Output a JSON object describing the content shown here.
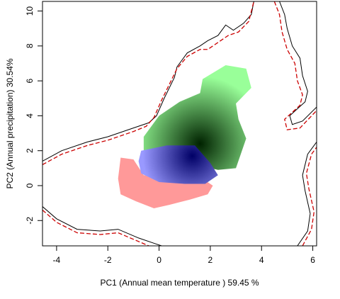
{
  "chart_data": {
    "type": "heatmap",
    "title": "",
    "xlabel": "PC1 (Annual mean temperature ) 59.45 %",
    "ylabel": "PC2 (Annual precipitation) 30.54%",
    "xlim": [
      -4.55,
      6.15
    ],
    "ylim": [
      -3.45,
      10.55
    ],
    "xticks": [
      -4,
      -2,
      0,
      2,
      4,
      6
    ],
    "yticks": [
      -2,
      0,
      2,
      4,
      6,
      8,
      10
    ],
    "grid": false,
    "legend": "none",
    "colors": {
      "species_a": "#ff9999",
      "species_b": "#99ff99",
      "overlap": "#9999ff",
      "dense_b": "#002200",
      "dense_overlap": "#000066",
      "contour_solid": "#000000",
      "contour_dashed": "#cc0000"
    },
    "regions": [
      {
        "name": "",
        "color": "#ff9999",
        "polygon": [
          [
            -1.5,
            1.6
          ],
          [
            -1.0,
            1.5
          ],
          [
            -0.6,
            0.6
          ],
          [
            0.0,
            0.5
          ],
          [
            1.0,
            0.6
          ],
          [
            1.8,
            0.3
          ],
          [
            2.1,
            0.0
          ],
          [
            1.9,
            -0.5
          ],
          [
            1.2,
            -0.8
          ],
          [
            0.4,
            -1.1
          ],
          [
            -0.2,
            -1.3
          ],
          [
            -0.9,
            -0.9
          ],
          [
            -1.5,
            -0.5
          ],
          [
            -1.6,
            0.4
          ]
        ]
      },
      {
        "name": "",
        "color": "#99ff99",
        "polygon": [
          [
            1.7,
            6.1
          ],
          [
            2.6,
            6.9
          ],
          [
            3.4,
            6.7
          ],
          [
            3.6,
            5.6
          ],
          [
            3.0,
            4.7
          ],
          [
            3.1,
            3.8
          ],
          [
            3.4,
            2.7
          ],
          [
            3.0,
            1.0
          ],
          [
            2.3,
            0.9
          ],
          [
            1.4,
            1.2
          ],
          [
            0.6,
            1.6
          ],
          [
            -0.6,
            2.0
          ],
          [
            -0.6,
            2.8
          ],
          [
            0.0,
            4.0
          ],
          [
            0.8,
            4.8
          ],
          [
            1.6,
            5.3
          ]
        ]
      },
      {
        "name": "",
        "color": "#9999ff",
        "polygon": [
          [
            -0.7,
            2.0
          ],
          [
            0.3,
            2.3
          ],
          [
            1.4,
            2.3
          ],
          [
            2.0,
            1.3
          ],
          [
            2.3,
            0.6
          ],
          [
            1.8,
            0.1
          ],
          [
            1.0,
            0.1
          ],
          [
            0.0,
            0.2
          ],
          [
            -0.7,
            0.7
          ],
          [
            -0.8,
            1.4
          ]
        ]
      }
    ],
    "density_peaks": [
      {
        "x": 1.6,
        "y": 2.4,
        "color": "#002200"
      },
      {
        "x": 1.3,
        "y": 1.7,
        "color": "#000066"
      }
    ],
    "contours": [
      {
        "style": "solid",
        "color": "#000000",
        "points": [
          [
            -4.55,
            1.4
          ],
          [
            -3.8,
            2.0
          ],
          [
            -2.8,
            2.5
          ],
          [
            -2.0,
            2.8
          ],
          [
            -1.0,
            3.3
          ],
          [
            -0.4,
            3.6
          ],
          [
            -0.1,
            4.0
          ],
          [
            0.2,
            5.0
          ],
          [
            0.6,
            6.2
          ],
          [
            0.7,
            6.8
          ],
          [
            1.1,
            7.6
          ],
          [
            1.6,
            8.0
          ],
          [
            1.9,
            8.3
          ],
          [
            2.3,
            8.6
          ],
          [
            2.6,
            9.2
          ],
          [
            2.9,
            8.9
          ],
          [
            3.3,
            9.3
          ],
          [
            3.6,
            9.8
          ],
          [
            3.7,
            10.55
          ]
        ]
      },
      {
        "style": "dashed",
        "color": "#cc0000",
        "points": [
          [
            -4.55,
            1.2
          ],
          [
            -3.8,
            1.8
          ],
          [
            -2.8,
            2.3
          ],
          [
            -2.0,
            2.6
          ],
          [
            -1.0,
            3.1
          ],
          [
            -0.5,
            3.4
          ],
          [
            -0.2,
            3.9
          ],
          [
            0.1,
            4.9
          ],
          [
            0.5,
            6.1
          ],
          [
            0.7,
            6.7
          ],
          [
            1.1,
            7.4
          ],
          [
            1.6,
            7.8
          ],
          [
            1.9,
            7.8
          ],
          [
            2.3,
            8.2
          ],
          [
            2.7,
            8.6
          ],
          [
            3.1,
            8.8
          ],
          [
            3.5,
            9.4
          ],
          [
            3.7,
            10.55
          ]
        ]
      },
      {
        "style": "solid",
        "color": "#000000",
        "points": [
          [
            4.7,
            10.55
          ],
          [
            4.9,
            9.8
          ],
          [
            5.0,
            9.0
          ],
          [
            5.2,
            8.0
          ],
          [
            5.5,
            7.3
          ],
          [
            5.6,
            6.3
          ],
          [
            5.8,
            5.4
          ],
          [
            5.7,
            4.8
          ],
          [
            5.4,
            4.4
          ],
          [
            5.1,
            4.0
          ],
          [
            5.2,
            3.5
          ],
          [
            5.6,
            3.7
          ],
          [
            6.15,
            4.5
          ]
        ]
      },
      {
        "style": "dashed",
        "color": "#cc0000",
        "points": [
          [
            4.5,
            10.55
          ],
          [
            4.7,
            9.8
          ],
          [
            4.8,
            8.8
          ],
          [
            5.0,
            7.8
          ],
          [
            5.3,
            7.0
          ],
          [
            5.4,
            6.0
          ],
          [
            5.6,
            5.2
          ],
          [
            5.5,
            4.6
          ],
          [
            5.2,
            4.2
          ],
          [
            4.9,
            3.8
          ],
          [
            5.0,
            3.2
          ],
          [
            5.5,
            3.3
          ],
          [
            6.15,
            4.3
          ]
        ]
      },
      {
        "style": "solid",
        "color": "#000000",
        "points": [
          [
            -4.55,
            -1.2
          ],
          [
            -4.0,
            -1.9
          ],
          [
            -3.2,
            -2.5
          ],
          [
            -2.3,
            -2.6
          ],
          [
            -1.6,
            -2.5
          ],
          [
            -0.8,
            -3.0
          ],
          [
            -0.2,
            -3.3
          ],
          [
            0.1,
            -3.45
          ]
        ]
      },
      {
        "style": "dashed",
        "color": "#cc0000",
        "points": [
          [
            -4.55,
            -1.4
          ],
          [
            -4.0,
            -2.1
          ],
          [
            -3.2,
            -2.7
          ],
          [
            -2.3,
            -2.8
          ],
          [
            -1.6,
            -2.7
          ],
          [
            -0.8,
            -3.2
          ],
          [
            -0.4,
            -3.45
          ]
        ]
      },
      {
        "style": "solid",
        "color": "#000000",
        "points": [
          [
            5.4,
            -3.45
          ],
          [
            5.8,
            -2.6
          ],
          [
            5.9,
            -1.6
          ],
          [
            5.7,
            -0.3
          ],
          [
            5.6,
            0.6
          ],
          [
            5.8,
            1.8
          ],
          [
            6.15,
            2.5
          ]
        ]
      },
      {
        "style": "dashed",
        "color": "#cc0000",
        "points": [
          [
            5.6,
            -3.45
          ],
          [
            5.95,
            -2.5
          ],
          [
            6.05,
            -1.5
          ],
          [
            5.85,
            -0.2
          ],
          [
            5.75,
            0.7
          ],
          [
            5.95,
            1.8
          ],
          [
            6.15,
            2.2
          ]
        ]
      }
    ]
  }
}
